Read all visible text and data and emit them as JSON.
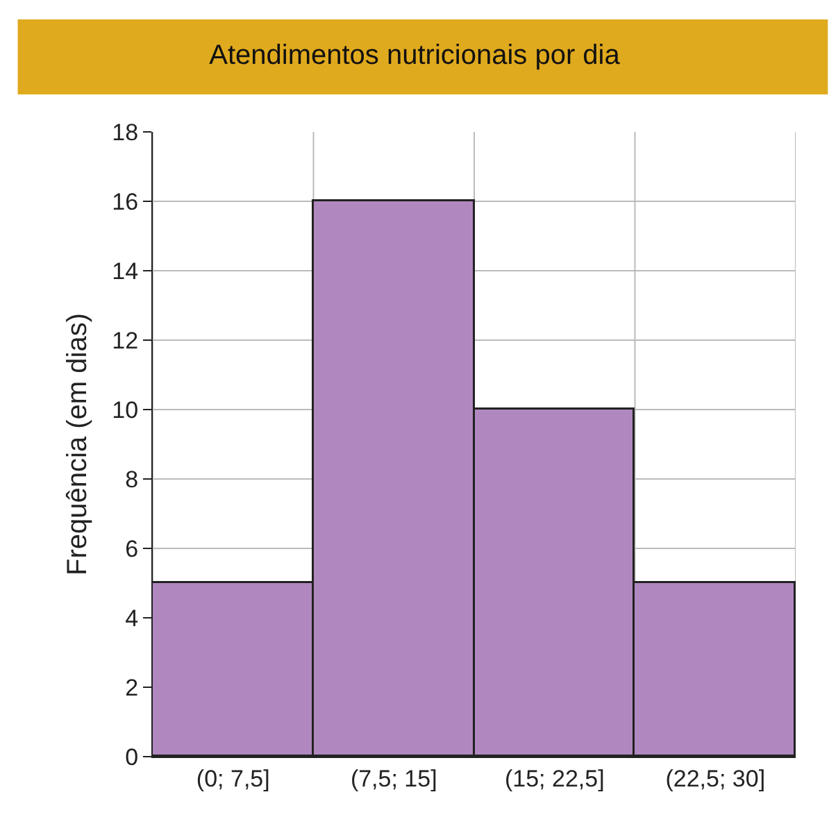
{
  "chart_data": {
    "type": "bar",
    "title": "Atendimentos nutricionais por dia",
    "ylabel": "Frequência (em dias)",
    "categories": [
      "(0; 7,5]",
      "(7,5; 15]",
      "(15; 22,5]",
      "(22,5; 30]"
    ],
    "values": [
      5,
      16,
      10,
      5
    ],
    "color": "#b088bf",
    "ylim": [
      0,
      18
    ],
    "yticks": [
      0,
      2,
      4,
      6,
      8,
      10,
      12,
      14,
      16,
      18
    ],
    "grid": true,
    "legend": false
  }
}
